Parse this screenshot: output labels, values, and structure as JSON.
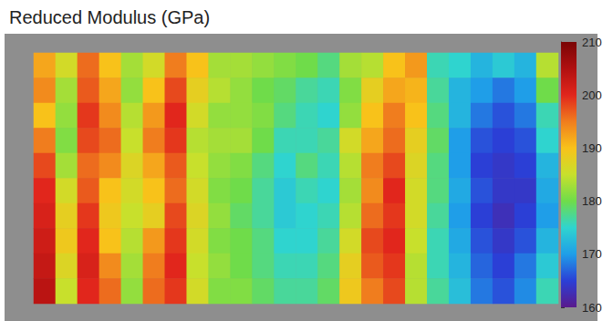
{
  "chart_data": {
    "type": "heatmap",
    "title": "Reduced Modulus (GPa)",
    "tick_labels": false,
    "cells": [
      [
        192,
        186,
        196,
        190,
        183,
        186,
        195,
        190,
        183,
        183,
        182,
        181,
        180,
        178,
        183,
        184,
        190,
        193,
        176,
        175,
        172,
        174,
        172,
        184
      ],
      [
        194,
        183,
        197,
        192,
        182,
        190,
        198,
        188,
        184,
        182,
        180,
        179,
        177,
        176,
        181,
        188,
        192,
        191,
        177,
        172,
        170,
        168,
        170,
        180
      ],
      [
        190,
        182,
        199,
        194,
        184,
        193,
        200,
        186,
        182,
        182,
        181,
        178,
        176,
        175,
        182,
        190,
        195,
        190,
        178,
        172,
        168,
        166,
        168,
        176
      ],
      [
        195,
        181,
        198,
        196,
        185,
        195,
        199,
        184,
        183,
        183,
        180,
        176,
        176,
        177,
        186,
        192,
        196,
        188,
        179,
        170,
        166,
        165,
        166,
        175
      ],
      [
        198,
        183,
        196,
        194,
        187,
        192,
        197,
        185,
        182,
        181,
        178,
        175,
        178,
        176,
        184,
        195,
        198,
        187,
        178,
        170,
        165,
        164,
        165,
        172
      ],
      [
        200,
        186,
        197,
        190,
        186,
        190,
        196,
        186,
        181,
        180,
        177,
        174,
        176,
        175,
        183,
        194,
        200,
        186,
        178,
        171,
        166,
        164,
        164,
        171
      ],
      [
        201,
        188,
        199,
        189,
        185,
        188,
        198,
        187,
        182,
        179,
        177,
        174,
        175,
        176,
        184,
        196,
        199,
        186,
        177,
        170,
        165,
        163,
        165,
        170
      ],
      [
        202,
        189,
        200,
        190,
        184,
        193,
        199,
        186,
        181,
        180,
        178,
        175,
        175,
        177,
        186,
        198,
        200,
        185,
        176,
        171,
        166,
        164,
        166,
        172
      ],
      [
        203,
        187,
        201,
        194,
        183,
        195,
        200,
        185,
        182,
        180,
        178,
        176,
        176,
        178,
        188,
        197,
        199,
        184,
        176,
        172,
        167,
        165,
        168,
        174
      ],
      [
        204,
        185,
        200,
        196,
        182,
        196,
        199,
        186,
        181,
        181,
        179,
        177,
        177,
        179,
        189,
        195,
        198,
        184,
        177,
        173,
        168,
        166,
        169,
        176
      ]
    ],
    "color_range": [
      160,
      210
    ],
    "color_ticks": [
      160,
      170,
      180,
      190,
      200,
      210
    ]
  }
}
